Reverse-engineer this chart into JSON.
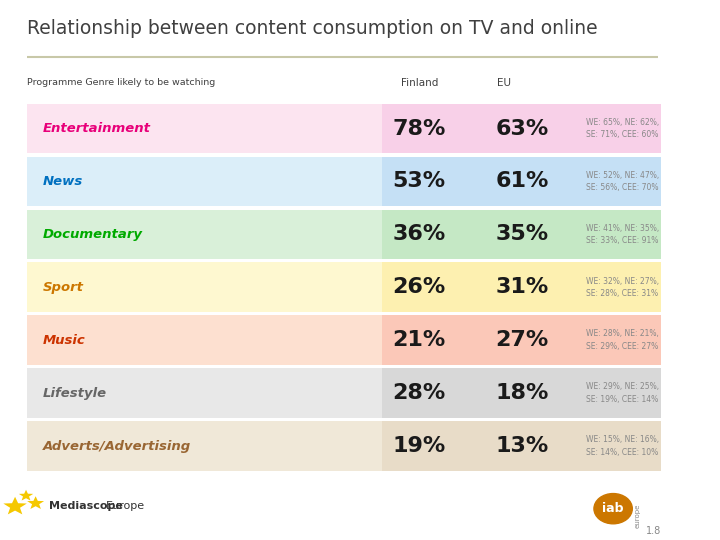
{
  "title": "Relationship between content consumption on TV and online",
  "subtitle": "Programme Genre likely to be watching",
  "col_finland": "Finland",
  "col_eu": "EU",
  "rows": [
    {
      "genre": "Entertainment",
      "finland": "78%",
      "eu": "63%",
      "detail": "WE: 65%, NE: 62%,\nSE: 71%, CEE: 60%",
      "genre_color": "#e8007a",
      "bg_color_left": "#fce4f0",
      "bg_color_right": "#f8d0e8"
    },
    {
      "genre": "News",
      "finland": "53%",
      "eu": "61%",
      "detail": "WE: 52%, NE: 47%,\nSE: 56%, CEE: 70%",
      "genre_color": "#0070c0",
      "bg_color_left": "#dbeef9",
      "bg_color_right": "#c5e0f5"
    },
    {
      "genre": "Documentary",
      "finland": "36%",
      "eu": "35%",
      "detail": "WE: 41%, NE: 35%,\nSE: 33%, CEE: 91%",
      "genre_color": "#00aa00",
      "bg_color_left": "#d9f0d9",
      "bg_color_right": "#c5e8c5"
    },
    {
      "genre": "Sport",
      "finland": "26%",
      "eu": "31%",
      "detail": "WE: 32%, NE: 27%,\nSE: 28%, CEE: 31%",
      "genre_color": "#cc7700",
      "bg_color_left": "#fef8d0",
      "bg_color_right": "#fdf0b0"
    },
    {
      "genre": "Music",
      "finland": "21%",
      "eu": "27%",
      "detail": "WE: 28%, NE: 21%,\nSE: 29%, CEE: 27%",
      "genre_color": "#cc3300",
      "bg_color_left": "#fde0d0",
      "bg_color_right": "#fbc8b8"
    },
    {
      "genre": "Lifestyle",
      "finland": "28%",
      "eu": "18%",
      "detail": "WE: 29%, NE: 25%,\nSE: 19%, CEE: 14%",
      "genre_color": "#666666",
      "bg_color_left": "#e8e8e8",
      "bg_color_right": "#d8d8d8"
    },
    {
      "genre": "Adverts/Advertising",
      "finland": "19%",
      "eu": "13%",
      "detail": "WE: 15%, NE: 16%,\nSE: 14%, CEE: 10%",
      "genre_color": "#996633",
      "bg_color_left": "#f0e8d8",
      "bg_color_right": "#e8dcc8"
    }
  ],
  "background_color": "#ffffff",
  "title_color": "#404040",
  "separator_color": "#c8c8a8",
  "page_number": "1.8"
}
